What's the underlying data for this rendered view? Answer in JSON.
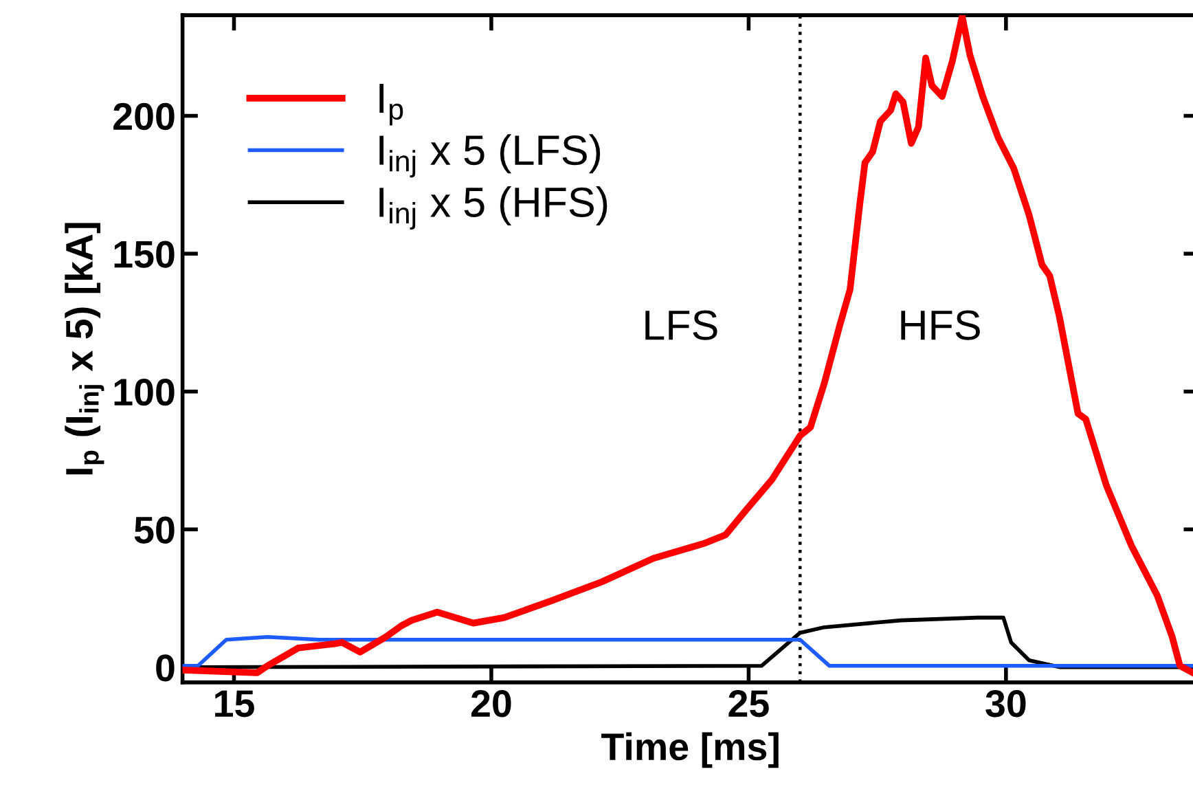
{
  "chart_data": {
    "type": "line",
    "xlabel": "Time [ms]",
    "ylabel": "I$_{p}$ (I$_{inj}$ x 5) [kA]",
    "xlim": [
      14,
      33.75
    ],
    "ylim": [
      -5.5,
      236.5
    ],
    "xticks": [
      15,
      20,
      25,
      30
    ],
    "yticks": [
      0,
      50,
      100,
      150,
      200
    ],
    "grid": false,
    "legend": "top left",
    "marker": "none",
    "line_style": "solid",
    "series": [
      {
        "name": "I$_{p}$",
        "color": "#ff0000",
        "x": [
          14.0,
          15.45,
          15.65,
          16.25,
          16.95,
          17.1,
          17.45,
          17.95,
          18.25,
          18.45,
          18.95,
          19.65,
          20.25,
          21.15,
          22.15,
          23.15,
          24.15,
          24.55,
          24.95,
          25.45,
          26.0,
          26.2,
          26.47,
          26.77,
          26.97,
          27.16,
          27.26,
          27.41,
          27.56,
          27.76,
          27.86,
          28.0,
          28.16,
          28.3,
          28.44,
          28.56,
          28.76,
          28.96,
          29.15,
          29.3,
          29.55,
          29.85,
          30.15,
          30.45,
          30.7,
          30.85,
          31.04,
          31.4,
          31.55,
          31.95,
          32.44,
          32.94,
          33.23,
          33.38,
          33.63
        ],
        "values": [
          -1,
          -2,
          0.5,
          7,
          8.5,
          9,
          5.5,
          11,
          15,
          17,
          20,
          16,
          18,
          24,
          31,
          39.5,
          45,
          48,
          57,
          68,
          84,
          87,
          103,
          124,
          137,
          168,
          183,
          187,
          198,
          202,
          208,
          205,
          190,
          196,
          221,
          211,
          207,
          220,
          236,
          222,
          207,
          192,
          181,
          164,
          146,
          142,
          127,
          92,
          90,
          66,
          44,
          26,
          11,
          0.5,
          -2
        ]
      },
      {
        "name": "I$_{inj}$ x 5 (LFS)",
        "color": "#1f5cff",
        "x": [
          14.0,
          14.3,
          14.85,
          15.65,
          16.65,
          25.65,
          26.0,
          26.57,
          33.73
        ],
        "values": [
          0.5,
          0.5,
          10,
          11,
          10,
          10,
          10,
          0.5,
          0.5
        ]
      },
      {
        "name": "I$_{inj}$ x 5 (HFS)",
        "color": "#000000",
        "x": [
          14.0,
          25.25,
          26.0,
          26.47,
          27.96,
          29.45,
          29.95,
          30.1,
          30.45,
          31.05,
          33.73
        ],
        "values": [
          0,
          0.5,
          12.5,
          14.5,
          17,
          18,
          18,
          9,
          2.5,
          0,
          0
        ]
      }
    ],
    "ref_lines": [
      {
        "axis": "x",
        "value": 26,
        "color": "#000000",
        "line_style": "dotted"
      }
    ],
    "annotations": [
      "LFS",
      "HFS"
    ]
  }
}
